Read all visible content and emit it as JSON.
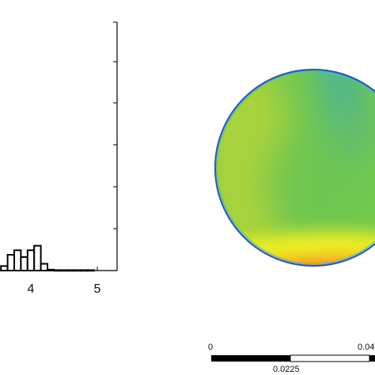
{
  "chart_data": [
    {
      "type": "bar",
      "title": "",
      "xlabel": "",
      "ylabel": "",
      "xlim": [
        0,
        5
      ],
      "x_tick_labels": [
        "4",
        "5"
      ],
      "x_ticks": [
        4,
        5
      ],
      "visible_x_range": [
        3.55,
        5.25
      ],
      "bin_width": 0.1,
      "bins": [
        {
          "x": 3.6,
          "value": 0.1
        },
        {
          "x": 3.7,
          "value": 0.35
        },
        {
          "x": 3.8,
          "value": 0.45
        },
        {
          "x": 3.9,
          "value": 0.3
        },
        {
          "x": 4.0,
          "value": 0.45
        },
        {
          "x": 4.1,
          "value": 0.55
        },
        {
          "x": 4.2,
          "value": 0.15
        },
        {
          "x": 4.3,
          "value": 0.02
        },
        {
          "x": 4.4,
          "value": 0.01
        },
        {
          "x": 4.5,
          "value": 0.01
        },
        {
          "x": 4.6,
          "value": 0.01
        },
        {
          "x": 4.7,
          "value": 0.01
        },
        {
          "x": 4.8,
          "value": 0.01
        },
        {
          "x": 4.9,
          "value": 0.01
        }
      ]
    },
    {
      "type": "heatmap",
      "shape": "circle",
      "colormap": [
        "#3aa0d8",
        "#56c26a",
        "#9ad03f",
        "#e8f021",
        "#f07a1e",
        "#ee1f3a",
        "#e61a8a"
      ],
      "scale_bar": {
        "labels": [
          "0",
          "0.04",
          "0.0225"
        ],
        "segments": [
          "black",
          "white",
          "black"
        ]
      }
    }
  ]
}
